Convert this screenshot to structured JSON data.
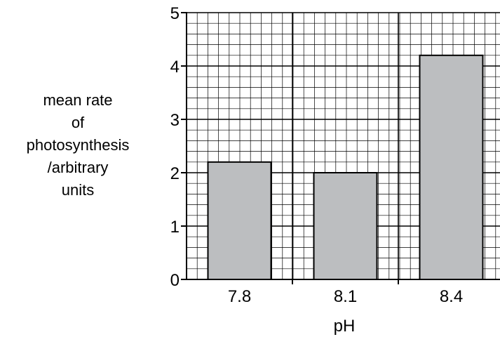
{
  "chart_data": {
    "type": "bar",
    "categories": [
      "7.8",
      "8.1",
      "8.4"
    ],
    "values": [
      2.2,
      2.0,
      4.2
    ],
    "title": "",
    "xlabel": "pH",
    "ylabel_lines": [
      "mean rate",
      "of",
      "photosynthesis",
      "/arbitrary",
      "units"
    ],
    "ylim": [
      0,
      5
    ],
    "yticks": [
      "0",
      "1",
      "2",
      "3",
      "4",
      "5"
    ],
    "grid": true,
    "legend": "none",
    "bar_color": "#bcbec0",
    "bar_edge_color": "#000000"
  }
}
